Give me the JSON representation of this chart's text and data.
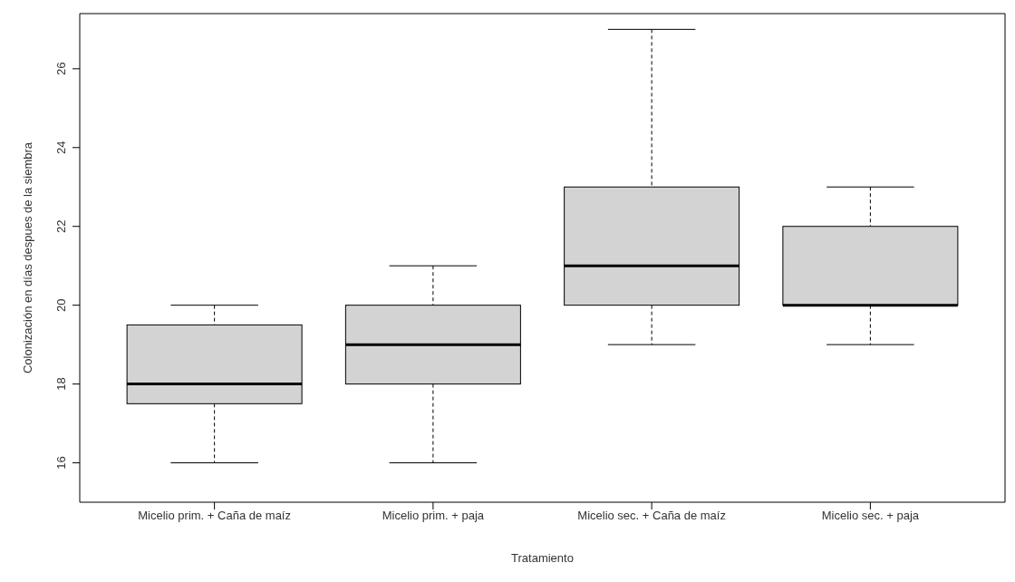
{
  "chart_data": {
    "type": "box",
    "xlabel": "Tratamiento",
    "ylabel": "Colonización en días despues de la siembra",
    "categories": [
      "Micelio prim. + Caña de maíz",
      "Micelio prim. + paja",
      "Micelio sec. + Caña de maíz",
      "Micelio sec. + paja"
    ],
    "color": "#d3d3d3",
    "boxes": [
      {
        "low": 16,
        "q1": 17.5,
        "median": 18,
        "q3": 19.5,
        "high": 20
      },
      {
        "low": 16,
        "q1": 18,
        "median": 19,
        "q3": 20,
        "high": 21
      },
      {
        "low": 19,
        "q1": 20,
        "median": 21,
        "q3": 23,
        "high": 27
      },
      {
        "low": 19,
        "q1": 20,
        "median": 20,
        "q3": 22,
        "high": 23
      }
    ],
    "ylim": [
      15,
      27.4
    ],
    "yticks": [
      16,
      18,
      20,
      22,
      24,
      26
    ],
    "grid": false
  }
}
